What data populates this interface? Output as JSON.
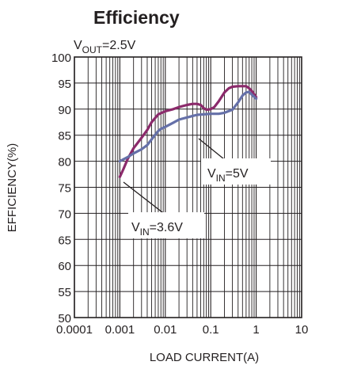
{
  "chart_data": {
    "type": "line",
    "title": "Efficiency",
    "subtitle": {
      "main": "V",
      "sub": "OUT",
      "tail": "=2.5V"
    },
    "xlabel": "LOAD CURRENT(A)",
    "ylabel": "EFFICIENCY(%)",
    "x_scale": "log",
    "xlim": [
      0.0001,
      10
    ],
    "ylim": [
      50,
      100
    ],
    "grid": true,
    "x_ticks": [
      0.0001,
      0.001,
      0.01,
      0.1,
      1,
      10
    ],
    "x_tick_labels": [
      "0.0001",
      "0.001",
      "0.01",
      "0.1",
      "1",
      "10"
    ],
    "y_ticks": [
      50,
      55,
      60,
      65,
      70,
      75,
      80,
      85,
      90,
      95,
      100
    ],
    "y_tick_labels": [
      "50",
      "55",
      "60",
      "65",
      "70",
      "75",
      "80",
      "85",
      "90",
      "95",
      "100"
    ],
    "series": [
      {
        "label": {
          "main": "V",
          "sub": "IN",
          "tail": "=3.6V"
        },
        "color": "#8b2a6b",
        "x": [
          0.001,
          0.0012,
          0.0015,
          0.002,
          0.003,
          0.004,
          0.005,
          0.007,
          0.01,
          0.015,
          0.02,
          0.03,
          0.04,
          0.05,
          0.06,
          0.07,
          0.08,
          0.1,
          0.12,
          0.15,
          0.2,
          0.25,
          0.3,
          0.4,
          0.5,
          0.6,
          0.7,
          0.8,
          1.0
        ],
        "y": [
          77.0,
          78.5,
          80.5,
          82.5,
          84.5,
          86.0,
          87.5,
          89.0,
          89.6,
          90.0,
          90.4,
          90.8,
          91.0,
          91.0,
          90.8,
          90.2,
          89.9,
          90.0,
          90.4,
          91.5,
          93.2,
          94.0,
          94.3,
          94.4,
          94.4,
          94.4,
          94.0,
          93.5,
          92.3
        ]
      },
      {
        "label": {
          "main": "V",
          "sub": "IN",
          "tail": "=5V"
        },
        "color": "#6570a8",
        "x": [
          0.001,
          0.0015,
          0.002,
          0.003,
          0.004,
          0.005,
          0.006,
          0.007,
          0.008,
          0.01,
          0.015,
          0.02,
          0.03,
          0.04,
          0.05,
          0.07,
          0.1,
          0.15,
          0.2,
          0.3,
          0.4,
          0.5,
          0.6,
          0.7,
          0.8,
          1.0
        ],
        "y": [
          80.0,
          80.8,
          81.5,
          82.3,
          83.1,
          84.2,
          85.1,
          85.8,
          86.2,
          86.6,
          87.4,
          88.0,
          88.4,
          88.7,
          88.9,
          89.0,
          89.1,
          89.1,
          89.3,
          89.9,
          91.3,
          92.6,
          93.2,
          93.3,
          92.8,
          92.0
        ]
      }
    ],
    "annotations": [
      {
        "series": 0,
        "text_main": "V",
        "text_sub": "IN",
        "text_tail": "=3.6V"
      },
      {
        "series": 1,
        "text_main": "V",
        "text_sub": "IN",
        "text_tail": "=5V"
      }
    ]
  }
}
